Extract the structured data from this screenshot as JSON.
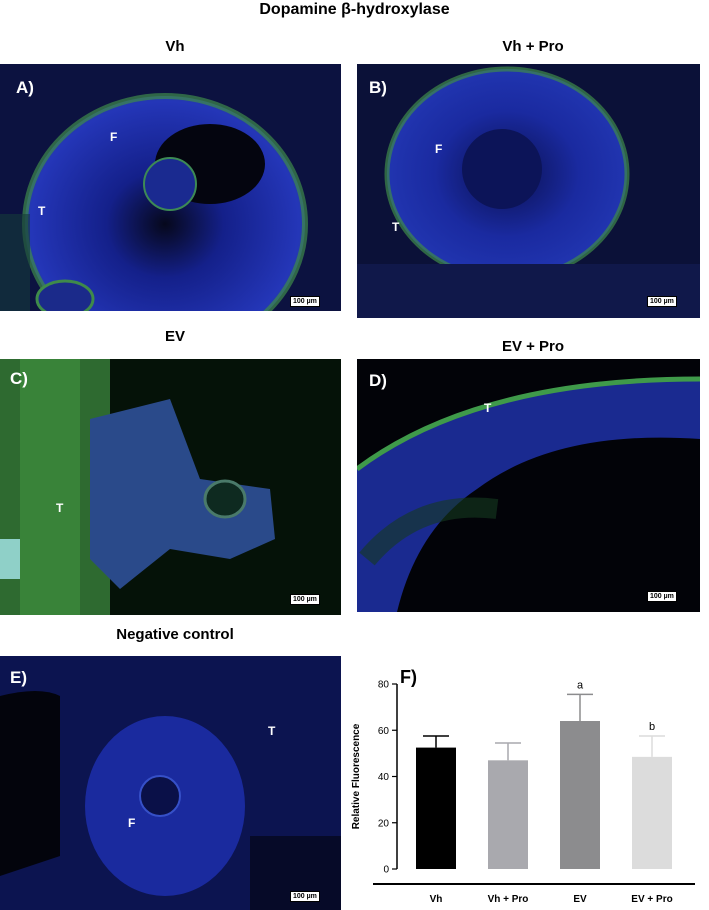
{
  "title": "Dopamine β-hydroxylase",
  "panels": {
    "A": {
      "letter": "A)",
      "heading": "Vh",
      "labels": [
        "F",
        "T"
      ],
      "scale": "100 µm"
    },
    "B": {
      "letter": "B)",
      "heading": "Vh + Pro",
      "labels": [
        "F",
        "T"
      ],
      "scale": "100 µm"
    },
    "C": {
      "letter": "C)",
      "heading": "EV",
      "labels": [
        "T"
      ],
      "scale": "100 µm"
    },
    "D": {
      "letter": "D)",
      "heading": "EV + Pro",
      "labels": [
        "T"
      ],
      "scale": "100 µm"
    },
    "E": {
      "letter": "E)",
      "heading": "Negative control",
      "labels": [
        "T",
        "F"
      ],
      "scale": "100 µm"
    }
  },
  "colors": {
    "nuclei": "#2a3fd6",
    "stain": "#3fa84a",
    "background": "#050818"
  },
  "chart_data": {
    "type": "bar",
    "panel_letter": "F)",
    "categories": [
      "Vh",
      "Vh + Pro",
      "EV",
      "EV + Pro"
    ],
    "values": [
      52.5,
      47,
      64,
      48.5
    ],
    "errors": [
      5,
      7.5,
      11.5,
      9
    ],
    "annotations": [
      "",
      "",
      "a",
      "b"
    ],
    "colors": [
      "#000000",
      "#a9a9ae",
      "#8c8c8e",
      "#dcdcdc"
    ],
    "ylabel": "Relative Fluorescence",
    "xlabel": "",
    "ylim": [
      0,
      80
    ],
    "yticks": [
      0,
      20,
      40,
      60,
      80
    ]
  }
}
